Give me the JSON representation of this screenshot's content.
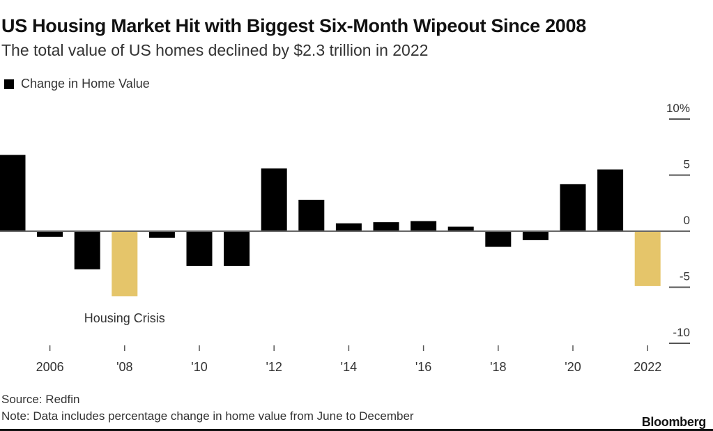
{
  "chart_data": {
    "type": "bar",
    "title": "US Housing Market Hit with Biggest Six-Month Wipeout Since 2008",
    "subtitle": "The total value of US homes declined by $2.3 trillion in 2022",
    "legend": [
      {
        "name": "Change in Home Value",
        "color": "#000000"
      }
    ],
    "legend_position": "top-left",
    "categories": [
      "2005",
      "2006",
      "2007",
      "2008",
      "2009",
      "2010",
      "2011",
      "2012",
      "2013",
      "2014",
      "2015",
      "2016",
      "2017",
      "2018",
      "2019",
      "2020",
      "2021",
      "2022"
    ],
    "series": [
      {
        "name": "Change in Home Value",
        "values": [
          6.8,
          -0.5,
          -3.4,
          -5.8,
          -0.6,
          -3.1,
          -3.1,
          5.6,
          2.8,
          0.7,
          0.8,
          0.9,
          0.4,
          -1.4,
          -0.8,
          4.2,
          5.5,
          -4.9
        ]
      }
    ],
    "highlighted_categories": [
      "2008",
      "2022"
    ],
    "colors": {
      "default": "#000000",
      "highlight": "#e5c56a",
      "axis": "#666666"
    },
    "x_tick_labels": [
      {
        "year": "2006",
        "label": "2006"
      },
      {
        "year": "2008",
        "label": "'08"
      },
      {
        "year": "2010",
        "label": "'10"
      },
      {
        "year": "2012",
        "label": "'12"
      },
      {
        "year": "2014",
        "label": "'14"
      },
      {
        "year": "2016",
        "label": "'16"
      },
      {
        "year": "2018",
        "label": "'18"
      },
      {
        "year": "2020",
        "label": "'20"
      },
      {
        "year": "2022",
        "label": "2022"
      }
    ],
    "y_ticks": [
      {
        "value": 10,
        "label": "10%"
      },
      {
        "value": 5,
        "label": "5"
      },
      {
        "value": 0,
        "label": "0"
      },
      {
        "value": -5,
        "label": "-5"
      },
      {
        "value": -10,
        "label": "-10"
      }
    ],
    "ylim": [
      -10,
      10
    ],
    "yaxis_position": "right",
    "grid": false,
    "annotations": [
      {
        "text": "Housing Crisis",
        "near": "2008"
      }
    ],
    "xlabel": "",
    "ylabel": ""
  },
  "footer": {
    "source": "Source: Redfin",
    "note": "Note: Data includes percentage change in home value from June to December",
    "brand": "Bloomberg"
  }
}
